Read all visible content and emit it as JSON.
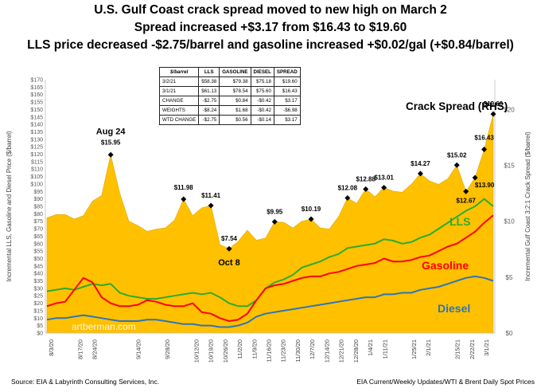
{
  "header": {
    "line1": "U.S. Gulf Coast crack spread moved to new high on March 2",
    "line2": "Spread increased +$3.17 from $16.43 to $19.60",
    "line3": "LLS price decreased -$2.75/barrel and gasoline increased +$0.02/gal (+$0.84/barrel)"
  },
  "footer": {
    "source": "Source:  EIA & Labyrinth Consulting Services, Inc.",
    "credit": "EIA Current/Weekly Updates/WTI & Brent Daily Spot Prices"
  },
  "table": {
    "headers": [
      "$/barrel",
      "LLS",
      "GASOLINE",
      "DIESEL",
      "SPREAD"
    ],
    "rows": [
      [
        "3/2/21",
        "$58.38",
        "$79.38",
        "$75.18",
        "$19.60"
      ],
      [
        "3/1/21",
        "$61.13",
        "$78.54",
        "$75.60",
        "$16.43"
      ],
      [
        "CHANGE",
        "-$2.75",
        "$0.84",
        "-$0.42",
        "$3.17"
      ],
      [
        "WEIGHTS",
        "-$8.24",
        "$1.68",
        "-$0.42",
        "-$6.98"
      ],
      [
        "WTD CHANGE",
        "-$2.75",
        "$0.56",
        "-$0.14",
        "$3.17"
      ]
    ]
  },
  "chart_data": {
    "type": "area",
    "ylabel_left": "Incremental LLS, Gasoline and Diesel Price ($/barrel)",
    "ylabel_right": "Incremental Gulf Coast 3:2:1 Crack Spread ($/barrel)",
    "ylim_left": [
      0,
      170
    ],
    "ylim_right": [
      0,
      22.67
    ],
    "yticks_left": [
      "$0",
      "$5",
      "$10",
      "$15",
      "$20",
      "$25",
      "$30",
      "$35",
      "$40",
      "$45",
      "$50",
      "$55",
      "$60",
      "$65",
      "$70",
      "$75",
      "$80",
      "$85",
      "$90",
      "$95",
      "$100",
      "$105",
      "$110",
      "$115",
      "$120",
      "$125",
      "$130",
      "$135",
      "$140",
      "$145",
      "$150",
      "$155",
      "$160",
      "$165",
      "$170"
    ],
    "yticks_right": [
      "$0",
      "$5",
      "$10",
      "$15",
      "$20"
    ],
    "x_labels": [
      "8/3/20",
      "8/10/20",
      "8/17/20",
      "8/24/20",
      "8/31/20",
      "9/7/20",
      "9/14/20",
      "9/21/20",
      "9/28/20",
      "10/5/20",
      "10/12/20",
      "10/19/20",
      "10/26/20",
      "11/2/20",
      "11/9/20",
      "11/16/20",
      "11/23/20",
      "11/30/20",
      "12/7/20",
      "12/14/20",
      "12/21/20",
      "12/28/20",
      "1/4/21",
      "1/11/21",
      "1/18/21",
      "1/25/21",
      "2/1/21",
      "2/8/21",
      "2/15/21",
      "2/22/21",
      "3/1/21"
    ],
    "shown_x_labels": [
      "8/3/20",
      "8/17/20",
      "8/24/20",
      "9/14/20",
      "9/28/20",
      "10/12/20",
      "10/19/20",
      "10/26/20",
      "11/2/20",
      "11/9/20",
      "11/16/20",
      "11/23/20",
      "11/30/20",
      "12/7/20",
      "12/14/20",
      "12/21/20",
      "12/28/20",
      "1/4/21",
      "1/11/21",
      "1/25/21",
      "2/1/21",
      "2/15/21",
      "2/22/21",
      "3/1/21"
    ],
    "grid": false,
    "series": [
      {
        "name": "Crack Spread (RHS)",
        "axis": "right",
        "color": "#FFC000",
        "kind": "area",
        "values": [
          10.3,
          10.6,
          10.6,
          10.2,
          10.5,
          11.8,
          12.3,
          15.95,
          12.5,
          10.0,
          9.6,
          9.1,
          9.3,
          9.4,
          10.1,
          11.98,
          10.5,
          11.2,
          11.41,
          7.9,
          7.54,
          8.2,
          9.2,
          8.3,
          8.5,
          9.95,
          9.9,
          9.4,
          10.0,
          10.19,
          9.4,
          9.3,
          10.4,
          12.08,
          11.6,
          12.88,
          12.2,
          13.01,
          12.7,
          12.6,
          13.3,
          14.27,
          13.6,
          13.3,
          13.8,
          15.02,
          12.67,
          13.9,
          16.43,
          19.6
        ]
      },
      {
        "name": "LLS",
        "axis": "left",
        "color": "#2EAB2E",
        "kind": "line",
        "values": [
          28,
          29,
          30,
          29,
          31,
          33,
          32,
          33,
          27,
          25,
          24,
          23,
          23,
          24,
          25,
          26,
          27,
          26,
          27,
          24,
          20,
          18,
          18,
          22,
          30,
          34,
          36,
          39,
          44,
          46,
          48,
          51,
          53,
          57,
          58,
          59,
          60,
          63,
          62,
          60,
          61,
          64,
          66,
          70,
          74,
          78,
          82,
          85,
          90,
          85
        ]
      },
      {
        "name": "Gasoline",
        "axis": "left",
        "color": "#FF0000",
        "kind": "line",
        "values": [
          18,
          20,
          21,
          29,
          37,
          34,
          24,
          20,
          18,
          18,
          19,
          22,
          21,
          19,
          18,
          18,
          20,
          14,
          13,
          10,
          8,
          9,
          13,
          22,
          30,
          32,
          33,
          35,
          37,
          38,
          38,
          40,
          41,
          43,
          45,
          46,
          47,
          50,
          48,
          48,
          49,
          51,
          52,
          55,
          58,
          60,
          64,
          68,
          74,
          79
        ]
      },
      {
        "name": "Diesel",
        "axis": "left",
        "color": "#2E75B6",
        "kind": "line",
        "values": [
          9,
          10,
          10,
          11,
          12,
          11,
          10,
          9,
          8,
          8,
          8,
          9,
          9,
          8,
          7,
          6,
          6,
          5,
          5,
          4,
          4,
          5,
          7,
          11,
          13,
          14,
          15,
          16,
          17,
          18,
          19,
          20,
          21,
          22,
          23,
          24,
          24,
          26,
          26,
          27,
          27,
          29,
          30,
          31,
          33,
          35,
          37,
          38,
          37,
          35
        ]
      }
    ],
    "annotations": [
      {
        "text": "Aug 24"
      },
      {
        "text": "$15.95"
      },
      {
        "text": "$11.98"
      },
      {
        "text": "$11.41"
      },
      {
        "text": "$7.54"
      },
      {
        "text": "Oct 8"
      },
      {
        "text": "$9.95"
      },
      {
        "text": "$10.19"
      },
      {
        "text": "$12.08"
      },
      {
        "text": "$12.88"
      },
      {
        "text": "$13.01"
      },
      {
        "text": "$14.27"
      },
      {
        "text": "$15.02"
      },
      {
        "text": "$12.67"
      },
      {
        "text": "$13.90"
      },
      {
        "text": "$16.43"
      },
      {
        "text": "$19.60"
      }
    ],
    "series_labels": [
      "Crack Spread (RHS)",
      "LLS",
      "Gasoline",
      "Diesel"
    ],
    "watermark": "artberman.com"
  }
}
